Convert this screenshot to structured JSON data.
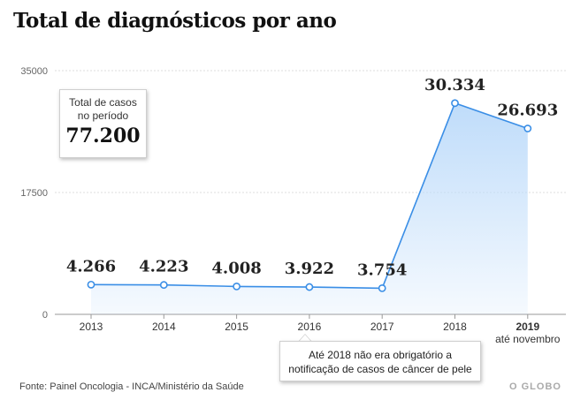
{
  "header": {
    "title": "Total de diagnósticos por ano"
  },
  "summary": {
    "label_line1": "Total de casos",
    "label_line2": "no período",
    "value": "77.200"
  },
  "note": {
    "line1": "Até 2018 não era obrigatório a",
    "line2": "notificação de casos de câncer de pele"
  },
  "footer": {
    "source": "Fonte: Painel Oncologia - INCA/Ministério da Saúde",
    "brand": "O GLOBO"
  },
  "colors": {
    "line": "#3a8ee6",
    "fill": "#bfdcfa",
    "text": "#222222",
    "axis": "#999999"
  },
  "chart_data": {
    "type": "area",
    "x": [
      "2013",
      "2014",
      "2015",
      "2016",
      "2017",
      "2018",
      "2019"
    ],
    "x_sublabels": [
      "",
      "",
      "",
      "",
      "",
      "",
      "até novembro"
    ],
    "highlight_x": "2019",
    "values": [
      4266,
      4223,
      4008,
      3922,
      3754,
      30334,
      26693
    ],
    "data_labels": [
      "4.266",
      "4.223",
      "4.008",
      "3.922",
      "3.754",
      "30.334",
      "26.693"
    ],
    "y_ticks": [
      0,
      17500,
      35000
    ],
    "ylim": [
      0,
      35000
    ],
    "grid": true
  }
}
